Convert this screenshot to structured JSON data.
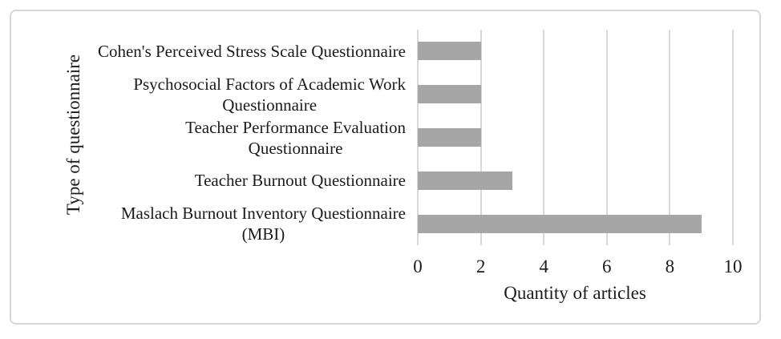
{
  "figure": {
    "background_color": "#ffffff",
    "card_border_color": "#d7d7d7"
  },
  "chart_data": {
    "type": "bar",
    "orientation": "horizontal",
    "categories": [
      "Cohen's Perceived Stress Scale Questionnaire",
      "Psychosocial Factors of Academic Work Questionnaire",
      "Teacher Performance Evaluation Questionnaire",
      "Teacher Burnout Questionnaire",
      "Maslach Burnout Inventory Questionnaire (MBI)"
    ],
    "category_display_lines": [
      [
        "Cohen's Perceived Stress Scale Questionnaire"
      ],
      [
        "Psychosocial Factors of Academic Work",
        "Questionnaire"
      ],
      [
        "Teacher Performance Evaluation",
        "Questionnaire"
      ],
      [
        "Teacher Burnout Questionnaire"
      ],
      [
        "Maslach Burnout Inventory Questionnaire",
        "(MBI)"
      ]
    ],
    "values": [
      2,
      2,
      2,
      3,
      9
    ],
    "xlabel": "Quantity of articles",
    "ylabel": "Type of questionnaire",
    "xlim": [
      0,
      10
    ],
    "xticks": [
      0,
      2,
      4,
      6,
      8,
      10
    ],
    "grid": "vertical-major",
    "legend": "none",
    "bar_color": "#a6a6a6",
    "gridline_color": "#d9d9d9",
    "text_color": "#1b1b1b"
  }
}
